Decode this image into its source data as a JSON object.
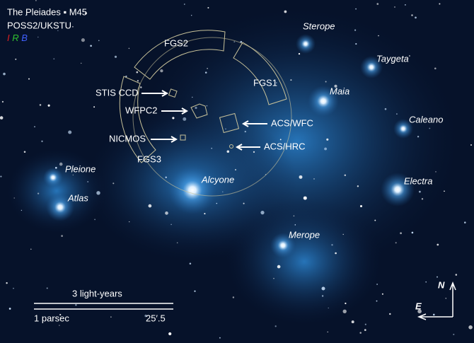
{
  "header": {
    "title": "The Pleiades ▪ M45",
    "survey": "POSS2/UKSTU",
    "filters": [
      "I",
      "R",
      "B"
    ]
  },
  "stars": [
    {
      "label": "Sterope"
    },
    {
      "label": "Taygeta"
    },
    {
      "label": "Maia"
    },
    {
      "label": "Caleano"
    },
    {
      "label": "Electra"
    },
    {
      "label": "Merope"
    },
    {
      "label": "Alcyone"
    },
    {
      "label": "Pleione"
    },
    {
      "label": "Atlas"
    }
  ],
  "instruments": [
    {
      "label": "FGS2"
    },
    {
      "label": "FGS1"
    },
    {
      "label": "FGS3"
    },
    {
      "label": "STIS CCD"
    },
    {
      "label": "WFPC2"
    },
    {
      "label": "NICMOS"
    },
    {
      "label": "ACS/WFC"
    },
    {
      "label": "ACS/HRC"
    }
  ],
  "scale": {
    "light_years": "3 light-years",
    "parsec": "1 parsec",
    "arcmin": "25′.5"
  },
  "compass": {
    "north": "N",
    "east": "E"
  }
}
